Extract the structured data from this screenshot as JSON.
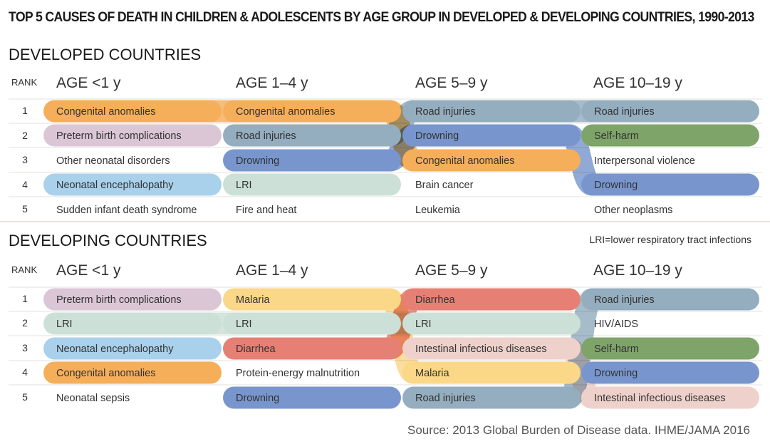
{
  "title": "TOP 5 CAUSES OF DEATH IN CHILDREN & ADOLESCENTS BY AGE GROUP IN DEVELOPED & DEVELOPING COUNTRIES, 1990-2013",
  "note": "LRI=lower respiratory tract infections",
  "source": "Source: 2013 Global Burden of Disease data. IHME/JAMA 2016",
  "rank_label": "RANK",
  "ranks": [
    "1",
    "2",
    "3",
    "4",
    "5"
  ],
  "age_groups": [
    "AGE <1 y",
    "AGE 1–4 y",
    "AGE 5–9 y",
    "AGE 10–19 y"
  ],
  "colors": {
    "Congenital anomalies": "#f5ae5a",
    "Preterm birth complications": "#dbc6d6",
    "Neonatal encephalopathy": "#a9d1ec",
    "Road injuries": "#94adbf",
    "Drowning": "#7896cd",
    "LRI": "#cce0d7",
    "Self-harm": "#7fa46a",
    "Malaria": "#fbd788",
    "Diarrhea": "#e78074",
    "Intestinal infectious diseases": "#efd1cb"
  },
  "chart_data": [
    {
      "type": "table",
      "title": "DEVELOPED COUNTRIES",
      "columns": [
        "AGE <1 y",
        "AGE 1–4 y",
        "AGE 5–9 y",
        "AGE 10–19 y"
      ],
      "rankings": [
        [
          "Congenital anomalies",
          "Preterm birth complications",
          "Other neonatal disorders",
          "Neonatal encephalopathy",
          "Sudden infant death syndrome"
        ],
        [
          "Congenital anomalies",
          "Road injuries",
          "Drowning",
          "LRI",
          "Fire and heat"
        ],
        [
          "Road injuries",
          "Drowning",
          "Congenital anomalies",
          "Brain cancer",
          "Leukemia"
        ],
        [
          "Road injuries",
          "Self-harm",
          "Interpersonal violence",
          "Drowning",
          "Other neoplasms"
        ]
      ]
    },
    {
      "type": "table",
      "title": "DEVELOPING COUNTRIES",
      "columns": [
        "AGE <1 y",
        "AGE 1–4 y",
        "AGE 5–9 y",
        "AGE 10–19 y"
      ],
      "rankings": [
        [
          "Preterm birth complications",
          "LRI",
          "Neonatal encephalopathy",
          "Congenital anomalies",
          "Neonatal sepsis"
        ],
        [
          "Malaria",
          "LRI",
          "Diarrhea",
          "Protein-energy malnutrition",
          "Drowning"
        ],
        [
          "Diarrhea",
          "LRI",
          "Intestinal infectious diseases",
          "Malaria",
          "Road injuries"
        ],
        [
          "Road injuries",
          "HIV/AIDS",
          "Self-harm",
          "Drowning",
          "Intestinal infectious diseases"
        ]
      ]
    }
  ]
}
